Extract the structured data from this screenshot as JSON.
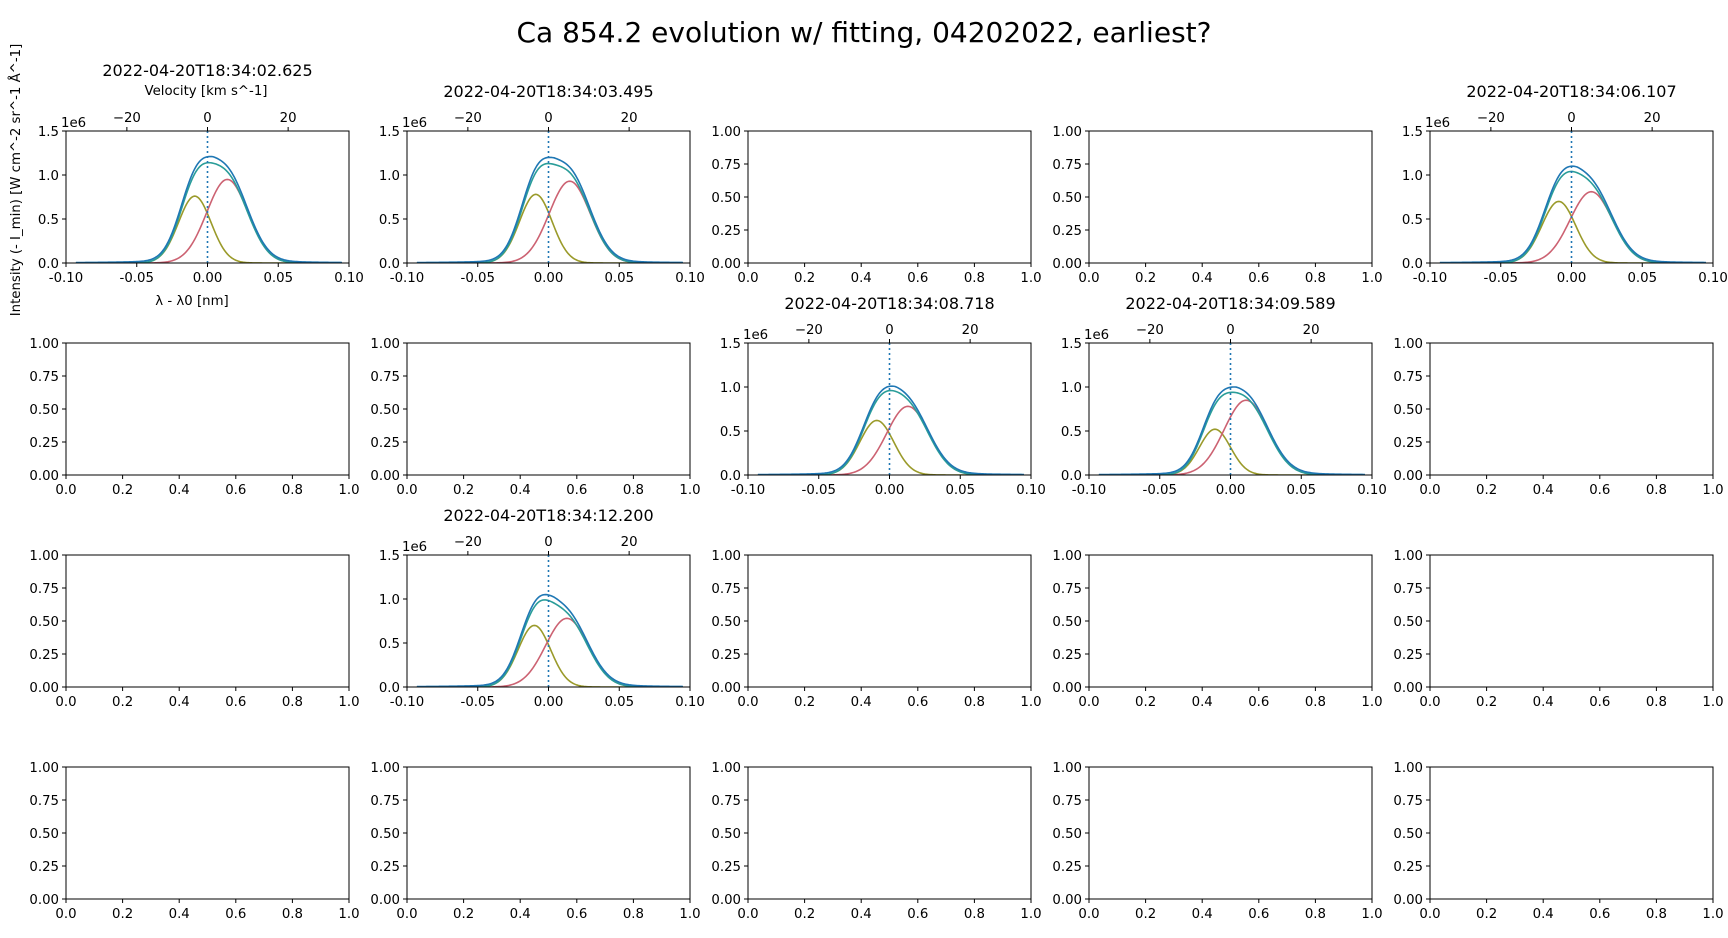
{
  "figure": {
    "suptitle": "Ca 854.2 evolution w/ fitting, 04202022, earliest?",
    "ylabel": "Intensity (- I_min) [W cm^-2 sr^-1 Å^-1]",
    "xlabel": "λ - λ0 [nm]",
    "top_xlabel": "Velocity [km s^-1]",
    "offset_text": "1e6",
    "rows": 4,
    "cols": 5
  },
  "chart_data": [
    {
      "row": 0,
      "col": 0,
      "type": "line",
      "title": "2022-04-20T18:34:02.625",
      "x_ticks": [
        "-0.10",
        "-0.05",
        "0.00",
        "0.05",
        "0.10"
      ],
      "y_ticks": [
        "0.0",
        "0.5",
        "1.0",
        "1.5"
      ],
      "top_ticks": [
        "−20",
        "0",
        "20"
      ],
      "xlim": [
        -0.1,
        0.1
      ],
      "ylim": [
        0,
        1.5
      ],
      "show_xlabel": true,
      "show_top_xlabel": true,
      "observed_peak": 1.21,
      "fit_total_peak": 1.14,
      "g1": {
        "amp": 0.76,
        "center": -0.009,
        "sigma": 0.0115
      },
      "g2": {
        "amp": 0.95,
        "center": 0.014,
        "sigma": 0.0145
      }
    },
    {
      "row": 0,
      "col": 1,
      "type": "line",
      "title": "2022-04-20T18:34:03.495",
      "x_ticks": [
        "-0.10",
        "-0.05",
        "0.00",
        "0.05",
        "0.10"
      ],
      "y_ticks": [
        "0.0",
        "0.5",
        "1.0",
        "1.5"
      ],
      "top_ticks": [
        "−20",
        "0",
        "20"
      ],
      "xlim": [
        -0.1,
        0.1
      ],
      "ylim": [
        0,
        1.5
      ],
      "observed_peak": 1.2,
      "fit_total_peak": 1.13,
      "g1": {
        "amp": 0.78,
        "center": -0.009,
        "sigma": 0.0115
      },
      "g2": {
        "amp": 0.93,
        "center": 0.015,
        "sigma": 0.0145
      }
    },
    {
      "row": 0,
      "col": 2,
      "type": "empty",
      "x_ticks": [
        "0.0",
        "0.2",
        "0.4",
        "0.6",
        "0.8",
        "1.0"
      ],
      "y_ticks": [
        "0.00",
        "0.25",
        "0.50",
        "0.75",
        "1.00"
      ]
    },
    {
      "row": 0,
      "col": 3,
      "type": "empty",
      "x_ticks": [
        "0.0",
        "0.2",
        "0.4",
        "0.6",
        "0.8",
        "1.0"
      ],
      "y_ticks": [
        "0.00",
        "0.25",
        "0.50",
        "0.75",
        "1.00"
      ]
    },
    {
      "row": 0,
      "col": 4,
      "type": "line",
      "title": "2022-04-20T18:34:06.107",
      "x_ticks": [
        "-0.10",
        "-0.05",
        "0.00",
        "0.05",
        "0.10"
      ],
      "y_ticks": [
        "0.0",
        "0.5",
        "1.0",
        "1.5"
      ],
      "top_ticks": [
        "−20",
        "0",
        "20"
      ],
      "xlim": [
        -0.1,
        0.1
      ],
      "ylim": [
        0,
        1.5
      ],
      "observed_peak": 1.1,
      "fit_total_peak": 1.04,
      "g1": {
        "amp": 0.7,
        "center": -0.009,
        "sigma": 0.012
      },
      "g2": {
        "amp": 0.81,
        "center": 0.014,
        "sigma": 0.015
      }
    },
    {
      "row": 1,
      "col": 0,
      "type": "empty",
      "x_ticks": [
        "0.0",
        "0.2",
        "0.4",
        "0.6",
        "0.8",
        "1.0"
      ],
      "y_ticks": [
        "0.00",
        "0.25",
        "0.50",
        "0.75",
        "1.00"
      ]
    },
    {
      "row": 1,
      "col": 1,
      "type": "empty",
      "x_ticks": [
        "0.0",
        "0.2",
        "0.4",
        "0.6",
        "0.8",
        "1.0"
      ],
      "y_ticks": [
        "0.00",
        "0.25",
        "0.50",
        "0.75",
        "1.00"
      ]
    },
    {
      "row": 1,
      "col": 2,
      "type": "line",
      "title": "2022-04-20T18:34:08.718",
      "x_ticks": [
        "-0.10",
        "-0.05",
        "0.00",
        "0.05",
        "0.10"
      ],
      "y_ticks": [
        "0.0",
        "0.5",
        "1.0",
        "1.5"
      ],
      "top_ticks": [
        "−20",
        "0",
        "20"
      ],
      "xlim": [
        -0.1,
        0.1
      ],
      "ylim": [
        0,
        1.5
      ],
      "observed_peak": 1.01,
      "fit_total_peak": 0.96,
      "g1": {
        "amp": 0.62,
        "center": -0.009,
        "sigma": 0.012
      },
      "g2": {
        "amp": 0.78,
        "center": 0.013,
        "sigma": 0.015
      }
    },
    {
      "row": 1,
      "col": 3,
      "type": "line",
      "title": "2022-04-20T18:34:09.589",
      "x_ticks": [
        "-0.10",
        "-0.05",
        "0.00",
        "0.05",
        "0.10"
      ],
      "y_ticks": [
        "0.0",
        "0.5",
        "1.0",
        "1.5"
      ],
      "top_ticks": [
        "−20",
        "0",
        "20"
      ],
      "xlim": [
        -0.1,
        0.1
      ],
      "ylim": [
        0,
        1.5
      ],
      "observed_peak": 1.0,
      "fit_total_peak": 0.94,
      "g1": {
        "amp": 0.52,
        "center": -0.011,
        "sigma": 0.011
      },
      "g2": {
        "amp": 0.85,
        "center": 0.011,
        "sigma": 0.0155
      }
    },
    {
      "row": 1,
      "col": 4,
      "type": "empty",
      "x_ticks": [
        "0.0",
        "0.2",
        "0.4",
        "0.6",
        "0.8",
        "1.0"
      ],
      "y_ticks": [
        "0.00",
        "0.25",
        "0.50",
        "0.75",
        "1.00"
      ]
    },
    {
      "row": 2,
      "col": 0,
      "type": "empty",
      "x_ticks": [
        "0.0",
        "0.2",
        "0.4",
        "0.6",
        "0.8",
        "1.0"
      ],
      "y_ticks": [
        "0.00",
        "0.25",
        "0.50",
        "0.75",
        "1.00"
      ]
    },
    {
      "row": 2,
      "col": 1,
      "type": "line",
      "title": "2022-04-20T18:34:12.200",
      "x_ticks": [
        "-0.10",
        "-0.05",
        "0.00",
        "0.05",
        "0.10"
      ],
      "y_ticks": [
        "0.0",
        "0.5",
        "1.0",
        "1.5"
      ],
      "top_ticks": [
        "−20",
        "0",
        "20"
      ],
      "xlim": [
        -0.1,
        0.1
      ],
      "ylim": [
        0,
        1.5
      ],
      "observed_peak": 1.05,
      "fit_total_peak": 0.99,
      "g1": {
        "amp": 0.7,
        "center": -0.01,
        "sigma": 0.0115
      },
      "g2": {
        "amp": 0.78,
        "center": 0.013,
        "sigma": 0.015
      }
    },
    {
      "row": 2,
      "col": 2,
      "type": "empty",
      "x_ticks": [
        "0.0",
        "0.2",
        "0.4",
        "0.6",
        "0.8",
        "1.0"
      ],
      "y_ticks": [
        "0.00",
        "0.25",
        "0.50",
        "0.75",
        "1.00"
      ]
    },
    {
      "row": 2,
      "col": 3,
      "type": "empty",
      "x_ticks": [
        "0.0",
        "0.2",
        "0.4",
        "0.6",
        "0.8",
        "1.0"
      ],
      "y_ticks": [
        "0.00",
        "0.25",
        "0.50",
        "0.75",
        "1.00"
      ]
    },
    {
      "row": 2,
      "col": 4,
      "type": "empty",
      "x_ticks": [
        "0.0",
        "0.2",
        "0.4",
        "0.6",
        "0.8",
        "1.0"
      ],
      "y_ticks": [
        "0.00",
        "0.25",
        "0.50",
        "0.75",
        "1.00"
      ]
    },
    {
      "row": 3,
      "col": 0,
      "type": "empty",
      "x_ticks": [
        "0.0",
        "0.2",
        "0.4",
        "0.6",
        "0.8",
        "1.0"
      ],
      "y_ticks": [
        "0.00",
        "0.25",
        "0.50",
        "0.75",
        "1.00"
      ]
    },
    {
      "row": 3,
      "col": 1,
      "type": "empty",
      "x_ticks": [
        "0.0",
        "0.2",
        "0.4",
        "0.6",
        "0.8",
        "1.0"
      ],
      "y_ticks": [
        "0.00",
        "0.25",
        "0.50",
        "0.75",
        "1.00"
      ]
    },
    {
      "row": 3,
      "col": 2,
      "type": "empty",
      "x_ticks": [
        "0.0",
        "0.2",
        "0.4",
        "0.6",
        "0.8",
        "1.0"
      ],
      "y_ticks": [
        "0.00",
        "0.25",
        "0.50",
        "0.75",
        "1.00"
      ]
    },
    {
      "row": 3,
      "col": 3,
      "type": "empty",
      "x_ticks": [
        "0.0",
        "0.2",
        "0.4",
        "0.6",
        "0.8",
        "1.0"
      ],
      "y_ticks": [
        "0.00",
        "0.25",
        "0.50",
        "0.75",
        "1.00"
      ]
    },
    {
      "row": 3,
      "col": 4,
      "type": "empty",
      "x_ticks": [
        "0.0",
        "0.2",
        "0.4",
        "0.6",
        "0.8",
        "1.0"
      ],
      "y_ticks": [
        "0.00",
        "0.25",
        "0.50",
        "0.75",
        "1.00"
      ]
    }
  ],
  "colors": {
    "observed": "#1f77b4",
    "fit_total": "#2a9d99",
    "gauss_blue": "#9a9a2a",
    "gauss_red": "#cc6272",
    "center_line": "#1f77b4",
    "axes": "#000000"
  }
}
